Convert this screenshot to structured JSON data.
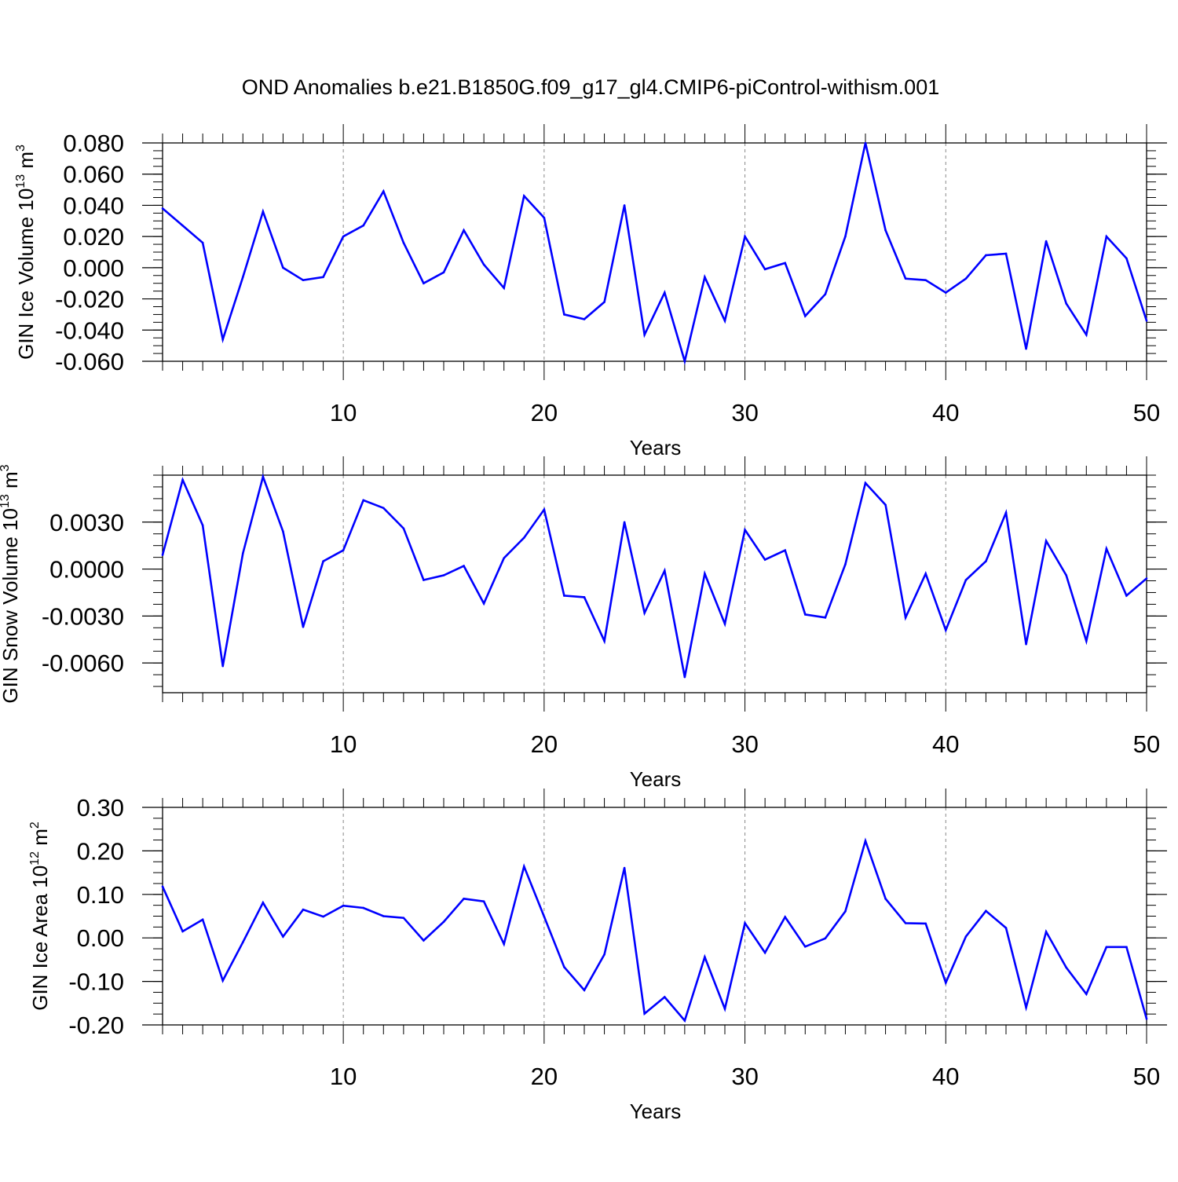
{
  "title": "OND Anomalies b.e21.B1850G.f09_g17_gl4.CMIP6-piControl-withism.001",
  "colors": {
    "line": "#0000ff",
    "grid": "#888888",
    "axis": "#000000"
  },
  "chart_data": [
    {
      "type": "line",
      "ylabel_main": "GIN Ice Volume 10",
      "ylabel_exp": "13",
      "ylabel_unit": " m",
      "ylabel_unit_exp": "3",
      "xlabel": "Years",
      "xlim": [
        1,
        50
      ],
      "ylim": [
        -0.06,
        0.08
      ],
      "xticks": [
        10,
        20,
        30,
        40,
        50
      ],
      "xtick_labels": [
        "10",
        "20",
        "30",
        "40",
        "50"
      ],
      "yticks": [
        -0.06,
        -0.04,
        -0.02,
        0.0,
        0.02,
        0.04,
        0.06,
        0.08
      ],
      "ytick_labels": [
        "-0.060",
        "-0.040",
        "-0.020",
        "0.000",
        "0.020",
        "0.040",
        "0.060",
        "0.080"
      ],
      "yminor_step": 0.005,
      "gridlines_x": [
        10,
        20,
        30,
        40
      ],
      "x": [
        1,
        2,
        3,
        4,
        5,
        6,
        7,
        8,
        9,
        10,
        11,
        12,
        13,
        14,
        15,
        16,
        17,
        18,
        19,
        20,
        21,
        22,
        23,
        24,
        25,
        26,
        27,
        28,
        29,
        30,
        31,
        32,
        33,
        34,
        35,
        36,
        37,
        38,
        39,
        40,
        41,
        42,
        43,
        44,
        45,
        46,
        47,
        48,
        49,
        50
      ],
      "values": [
        0.038,
        0.027,
        0.016,
        -0.046,
        -0.006,
        0.036,
        0.0,
        -0.008,
        -0.006,
        0.02,
        0.027,
        0.049,
        0.016,
        -0.01,
        -0.003,
        0.024,
        0.002,
        -0.013,
        0.046,
        0.032,
        -0.03,
        -0.033,
        -0.022,
        0.04,
        -0.043,
        -0.016,
        -0.06,
        -0.006,
        -0.034,
        0.02,
        -0.001,
        0.003,
        -0.031,
        -0.017,
        0.02,
        0.08,
        0.024,
        -0.007,
        -0.008,
        -0.016,
        -0.007,
        0.008,
        0.009,
        -0.052,
        0.017,
        -0.023,
        -0.043,
        0.02,
        0.006,
        -0.034
      ]
    },
    {
      "type": "line",
      "ylabel_main": "GIN Snow Volume 10",
      "ylabel_exp": "13",
      "ylabel_unit": " m",
      "ylabel_unit_exp": "3",
      "xlabel": "Years",
      "xlim": [
        1,
        50
      ],
      "ylim": [
        -0.0079,
        0.006
      ],
      "xticks": [
        10,
        20,
        30,
        40,
        50
      ],
      "xtick_labels": [
        "10",
        "20",
        "30",
        "40",
        "50"
      ],
      "yticks": [
        -0.006,
        -0.003,
        0.0,
        0.003
      ],
      "ytick_labels": [
        "-0.0060",
        "-0.0030",
        "0.0000",
        "0.0030"
      ],
      "yminor_step": 0.00075,
      "gridlines_x": [
        10,
        20,
        30,
        40
      ],
      "x": [
        1,
        2,
        3,
        4,
        5,
        6,
        7,
        8,
        9,
        10,
        11,
        12,
        13,
        14,
        15,
        16,
        17,
        18,
        19,
        20,
        21,
        22,
        23,
        24,
        25,
        26,
        27,
        28,
        29,
        30,
        31,
        32,
        33,
        34,
        35,
        36,
        37,
        38,
        39,
        40,
        41,
        42,
        43,
        44,
        45,
        46,
        47,
        48,
        49,
        50
      ],
      "values": [
        0.0009,
        0.0057,
        0.0028,
        -0.0062,
        0.001,
        0.0059,
        0.0024,
        -0.0037,
        0.0005,
        0.0012,
        0.0044,
        0.0039,
        0.0026,
        -0.0007,
        -0.0004,
        0.0002,
        -0.0022,
        0.0007,
        0.002,
        0.0038,
        -0.0017,
        -0.0018,
        -0.0046,
        0.003,
        -0.0028,
        -0.0001,
        -0.0069,
        -0.0003,
        -0.0035,
        0.0025,
        0.0006,
        0.0012,
        -0.0029,
        -0.0031,
        0.0003,
        0.0055,
        0.0041,
        -0.0031,
        -0.0003,
        -0.0039,
        -0.0007,
        0.0005,
        0.0036,
        -0.0048,
        0.0018,
        -0.0004,
        -0.0046,
        0.0013,
        -0.0017,
        -0.0006
      ]
    },
    {
      "type": "line",
      "ylabel_main": "GIN Ice Area 10",
      "ylabel_exp": "12",
      "ylabel_unit": " m",
      "ylabel_unit_exp": "2",
      "xlabel": "Years",
      "xlim": [
        1,
        50
      ],
      "ylim": [
        -0.2,
        0.3
      ],
      "xticks": [
        10,
        20,
        30,
        40,
        50
      ],
      "xtick_labels": [
        "10",
        "20",
        "30",
        "40",
        "50"
      ],
      "yticks": [
        -0.2,
        -0.1,
        0.0,
        0.1,
        0.2,
        0.3
      ],
      "ytick_labels": [
        "-0.20",
        "-0.10",
        "0.00",
        "0.10",
        "0.20",
        "0.30"
      ],
      "yminor_step": 0.025,
      "gridlines_x": [
        10,
        20,
        30,
        40
      ],
      "x": [
        1,
        2,
        3,
        4,
        5,
        6,
        7,
        8,
        9,
        10,
        11,
        12,
        13,
        14,
        15,
        16,
        17,
        18,
        19,
        20,
        21,
        22,
        23,
        24,
        25,
        26,
        27,
        28,
        29,
        30,
        31,
        32,
        33,
        34,
        35,
        36,
        37,
        38,
        39,
        40,
        41,
        42,
        43,
        44,
        45,
        46,
        47,
        48,
        49,
        50
      ],
      "values": [
        0.118,
        0.015,
        0.042,
        -0.098,
        -0.01,
        0.081,
        0.003,
        0.065,
        0.049,
        0.074,
        0.069,
        0.05,
        0.046,
        -0.006,
        0.037,
        0.09,
        0.084,
        -0.014,
        0.164,
        0.049,
        -0.067,
        -0.12,
        -0.038,
        0.161,
        -0.174,
        -0.136,
        -0.19,
        -0.044,
        -0.163,
        0.034,
        -0.034,
        0.048,
        -0.02,
        -0.001,
        0.061,
        0.223,
        0.09,
        0.034,
        0.033,
        -0.103,
        0.003,
        0.062,
        0.023,
        -0.16,
        0.014,
        -0.068,
        -0.129,
        -0.021,
        -0.021,
        -0.186
      ]
    }
  ]
}
